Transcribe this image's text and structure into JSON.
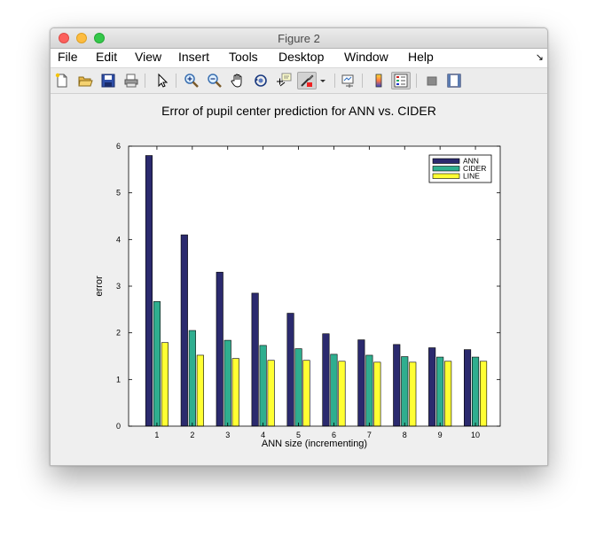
{
  "window": {
    "title": "Figure 2"
  },
  "menu": {
    "items": [
      "File",
      "Edit",
      "View",
      "Insert",
      "Tools",
      "Desktop",
      "Window",
      "Help"
    ]
  },
  "toolbar": {
    "icons": [
      "new-figure-icon",
      "open-file-icon",
      "save-icon",
      "print-icon",
      "select-arrow-icon",
      "zoom-in-icon",
      "zoom-out-icon",
      "pan-hand-icon",
      "rotate-3d-icon",
      "data-cursor-icon",
      "brush-icon",
      "brush-dropdown-icon",
      "link-plot-icon",
      "colorbar-icon",
      "legend-icon",
      "hide-plot-tools-icon",
      "show-plot-tools-icon"
    ]
  },
  "chart_data": {
    "type": "bar",
    "title": "Error of pupil center prediction for ANN vs. CIDER",
    "xlabel": "ANN size (incrementing)",
    "ylabel": "error",
    "categories": [
      "1",
      "2",
      "3",
      "4",
      "5",
      "6",
      "7",
      "8",
      "9",
      "10"
    ],
    "ylim": [
      0,
      6
    ],
    "yticks": [
      "0",
      "1",
      "2",
      "3",
      "4",
      "5",
      "6"
    ],
    "legend_position": "top-right",
    "grid": false,
    "series": [
      {
        "name": "ANN",
        "color": "#2b2a6e",
        "values": [
          5.8,
          4.1,
          3.3,
          2.85,
          2.42,
          1.98,
          1.85,
          1.75,
          1.68,
          1.64
        ]
      },
      {
        "name": "CIDER",
        "color": "#2fae8f",
        "values": [
          2.67,
          2.05,
          1.84,
          1.73,
          1.66,
          1.54,
          1.52,
          1.49,
          1.48,
          1.48
        ]
      },
      {
        "name": "LINE",
        "color": "#ffff33",
        "values": [
          1.79,
          1.52,
          1.45,
          1.41,
          1.41,
          1.39,
          1.37,
          1.37,
          1.39,
          1.39
        ]
      }
    ]
  }
}
